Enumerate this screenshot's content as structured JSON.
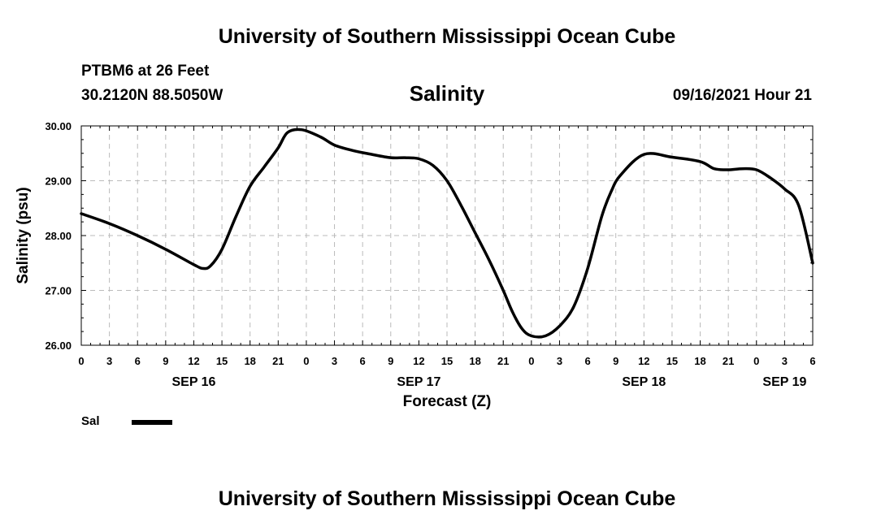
{
  "header": {
    "title": "University of Southern Mississippi Ocean Cube",
    "station": "PTBM6 at 26 Feet",
    "coordinates": "30.2120N  88.5050W",
    "timestamp": "09/16/2021 Hour 21"
  },
  "footer": {
    "title": "University of Southern Mississippi Ocean Cube"
  },
  "legend": {
    "series_label": "Sal"
  },
  "colors": {
    "line": "#000000",
    "grid": "#bbbbbb",
    "background": "#ffffff"
  },
  "chart_data": {
    "type": "line",
    "title": "Salinity",
    "xlabel": "Forecast (Z)",
    "ylabel": "Salinity (psu)",
    "xlim": [
      0,
      78
    ],
    "ylim": [
      26.0,
      30.0
    ],
    "grid": true,
    "x_ticks": [
      {
        "hour": 0,
        "label": "0"
      },
      {
        "hour": 3,
        "label": "3"
      },
      {
        "hour": 6,
        "label": "6"
      },
      {
        "hour": 9,
        "label": "9"
      },
      {
        "hour": 12,
        "label": "12"
      },
      {
        "hour": 15,
        "label": "15"
      },
      {
        "hour": 18,
        "label": "18"
      },
      {
        "hour": 21,
        "label": "21"
      },
      {
        "hour": 24,
        "label": "0"
      },
      {
        "hour": 27,
        "label": "3"
      },
      {
        "hour": 30,
        "label": "6"
      },
      {
        "hour": 33,
        "label": "9"
      },
      {
        "hour": 36,
        "label": "12"
      },
      {
        "hour": 39,
        "label": "15"
      },
      {
        "hour": 42,
        "label": "18"
      },
      {
        "hour": 45,
        "label": "21"
      },
      {
        "hour": 48,
        "label": "0"
      },
      {
        "hour": 51,
        "label": "3"
      },
      {
        "hour": 54,
        "label": "6"
      },
      {
        "hour": 57,
        "label": "9"
      },
      {
        "hour": 60,
        "label": "12"
      },
      {
        "hour": 63,
        "label": "15"
      },
      {
        "hour": 66,
        "label": "18"
      },
      {
        "hour": 69,
        "label": "21"
      },
      {
        "hour": 72,
        "label": "0"
      },
      {
        "hour": 75,
        "label": "3"
      },
      {
        "hour": 78,
        "label": "6"
      }
    ],
    "y_ticks": [
      {
        "value": 26.0,
        "label": "26.00"
      },
      {
        "value": 27.0,
        "label": "27.00"
      },
      {
        "value": 28.0,
        "label": "28.00"
      },
      {
        "value": 29.0,
        "label": "29.00"
      },
      {
        "value": 30.0,
        "label": "30.00"
      }
    ],
    "day_labels": [
      {
        "hour": 12,
        "label": "SEP 16"
      },
      {
        "hour": 36,
        "label": "SEP 17"
      },
      {
        "hour": 60,
        "label": "SEP 18"
      },
      {
        "hour": 75,
        "label": "SEP 19"
      }
    ],
    "series": [
      {
        "name": "Sal",
        "x": [
          0,
          3,
          6,
          9,
          12,
          13,
          13.8,
          15,
          16.5,
          18,
          19.5,
          21,
          22,
          23.5,
          25.5,
          27,
          29,
          31,
          33,
          34.5,
          36,
          37.5,
          39,
          40.5,
          42,
          43.5,
          45,
          46,
          47,
          48,
          49.5,
          51,
          52.5,
          54,
          55.5,
          56.5,
          57.5,
          60,
          63,
          66,
          67.5,
          69,
          70.5,
          72,
          73.5,
          75,
          76.5,
          78
        ],
        "values": [
          28.4,
          28.22,
          28.0,
          27.75,
          27.47,
          27.4,
          27.45,
          27.75,
          28.35,
          28.9,
          29.25,
          29.6,
          29.88,
          29.93,
          29.8,
          29.65,
          29.55,
          29.48,
          29.42,
          29.42,
          29.4,
          29.28,
          29.0,
          28.55,
          28.05,
          27.55,
          27.0,
          26.6,
          26.3,
          26.17,
          26.17,
          26.35,
          26.7,
          27.4,
          28.35,
          28.8,
          29.1,
          29.48,
          29.43,
          29.35,
          29.22,
          29.2,
          29.22,
          29.2,
          29.05,
          28.85,
          28.55,
          27.5
        ]
      }
    ]
  }
}
